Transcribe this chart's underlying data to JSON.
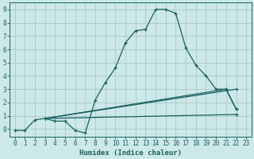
{
  "xlabel": "Humidex (Indice chaleur)",
  "bg_color": "#cce8e8",
  "grid_color": "#aacaca",
  "line_color": "#1a6060",
  "xlim": [
    -0.5,
    23.5
  ],
  "ylim": [
    -0.55,
    9.5
  ],
  "xticks": [
    0,
    1,
    2,
    3,
    4,
    5,
    6,
    7,
    8,
    9,
    10,
    11,
    12,
    13,
    14,
    15,
    16,
    17,
    18,
    19,
    20,
    21,
    22,
    23
  ],
  "yticks": [
    0,
    1,
    2,
    3,
    4,
    5,
    6,
    7,
    8,
    9
  ],
  "line1_x": [
    0,
    1,
    2,
    3,
    4,
    5,
    6,
    7,
    8,
    9,
    10,
    11,
    12,
    13,
    14,
    15,
    16,
    17,
    18,
    19,
    20,
    21,
    22
  ],
  "line1_y": [
    -0.1,
    -0.1,
    0.7,
    0.8,
    0.6,
    0.6,
    -0.1,
    -0.3,
    2.2,
    3.5,
    4.6,
    6.5,
    7.4,
    7.5,
    9.0,
    9.0,
    8.7,
    6.1,
    4.8,
    4.0,
    3.0,
    3.0,
    1.5
  ],
  "line2_x": [
    3,
    22
  ],
  "line2_y": [
    0.8,
    3.0
  ],
  "line3_x": [
    3,
    21,
    22
  ],
  "line3_y": [
    0.8,
    3.0,
    1.5
  ],
  "line4_x": [
    3,
    22
  ],
  "line4_y": [
    0.8,
    1.1
  ],
  "origin_x": 3,
  "origin_y": 0.8
}
